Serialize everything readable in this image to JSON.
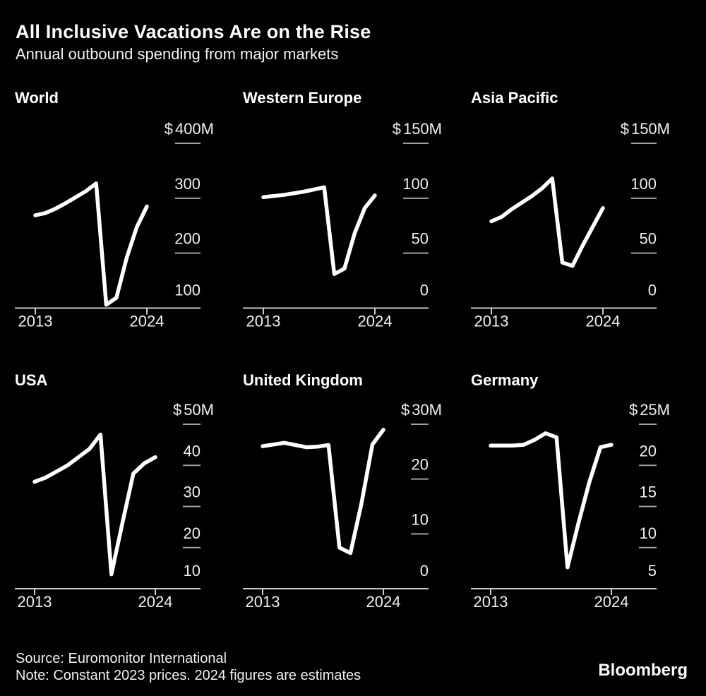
{
  "header": {
    "title": "All Inclusive Vacations Are on the Rise",
    "subtitle": "Annual outbound spending from major markets"
  },
  "footer": {
    "source": "Source: Euromonitor International",
    "note": "Note: Constant 2023 prices. 2024 figures are estimates",
    "brand": "Bloomberg"
  },
  "colors": {
    "background": "#000000",
    "data_line": "#ffffff",
    "axis_line": "#c9c9c9",
    "tick_dash": "#a0a0a0",
    "tick_label": "#f0f0f0",
    "title_text": "#ffffff"
  },
  "chart_data": {
    "type": "line",
    "title": "All Inclusive Vacations Are on the Rise",
    "subtitle": "Annual outbound spending from major markets",
    "unit": "USD millions",
    "grid": false,
    "legend": "none",
    "x": [
      2013,
      2014,
      2015,
      2016,
      2017,
      2018,
      2019,
      2020,
      2021,
      2022,
      2023,
      2024
    ],
    "x_axis_tick_labels": [
      "2013",
      "2024"
    ],
    "panels": [
      {
        "title": "World",
        "top_tick_label": "$400M",
        "currency_prefix": "$",
        "unit_suffix": "M",
        "y_ticks": [
          400,
          300,
          200,
          100
        ],
        "ylim": [
          100,
          400
        ],
        "values": [
          269,
          273,
          281,
          291,
          302,
          313,
          327,
          106,
          119,
          191,
          247,
          285
        ]
      },
      {
        "title": "Western Europe",
        "top_tick_label": "$150M",
        "currency_prefix": "$",
        "unit_suffix": "M",
        "y_ticks": [
          150,
          100,
          50,
          0
        ],
        "ylim": [
          0,
          150
        ],
        "values": [
          101,
          102,
          103,
          104.5,
          106,
          108,
          110,
          31,
          36,
          68,
          91,
          102.5
        ]
      },
      {
        "title": "Asia Pacific",
        "top_tick_label": "$150M",
        "currency_prefix": "$",
        "unit_suffix": "M",
        "y_ticks": [
          150,
          100,
          50,
          0
        ],
        "ylim": [
          0,
          150
        ],
        "values": [
          79,
          83,
          90,
          96,
          102,
          109,
          118,
          41.5,
          38.5,
          57,
          74,
          91
        ]
      },
      {
        "title": "USA",
        "top_tick_label": "$50M",
        "currency_prefix": "$",
        "unit_suffix": "M",
        "y_ticks": [
          50,
          40,
          30,
          20,
          10
        ],
        "ylim": [
          10,
          50
        ],
        "values": [
          36,
          37,
          38.5,
          40,
          42,
          44,
          47.5,
          13.5,
          26,
          38,
          40.5,
          42
        ]
      },
      {
        "title": "United Kingdom",
        "top_tick_label": "$30M",
        "currency_prefix": "$",
        "unit_suffix": "M",
        "y_ticks": [
          30,
          20,
          10,
          0
        ],
        "ylim": [
          0,
          30
        ],
        "values": [
          26,
          26.3,
          26.6,
          26.2,
          25.8,
          25.9,
          26.2,
          7.5,
          6.5,
          15.5,
          26.3,
          29
        ]
      },
      {
        "title": "Germany",
        "top_tick_label": "$25M",
        "currency_prefix": "$",
        "unit_suffix": "M",
        "y_ticks": [
          25,
          20,
          15,
          10,
          5
        ],
        "ylim": [
          5,
          25
        ],
        "values": [
          22.4,
          22.4,
          22.4,
          22.5,
          23.1,
          23.9,
          23.4,
          7.6,
          13,
          18,
          22.2,
          22.5
        ]
      }
    ]
  }
}
